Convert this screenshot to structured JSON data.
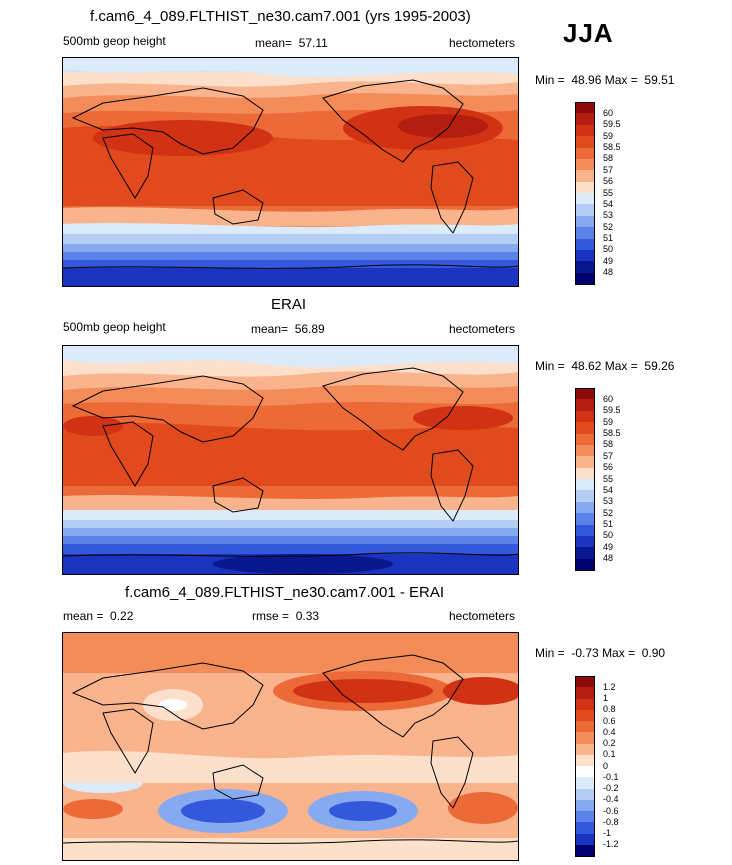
{
  "season": "JJA",
  "chart_data": [
    {
      "type": "heatmap",
      "title": "f.cam6_4_089.FLTHIST_ne30.cam7.001 (yrs 1995-2003)",
      "variable": "500mb geop height",
      "stat_label": "mean=",
      "stat_value": "57.11",
      "units": "hectometers",
      "min_label": "Min =",
      "min_value": "48.96",
      "max_label": "Max =",
      "max_value": "59.51",
      "colorbar": {
        "labels": [
          "60",
          "59.5",
          "59",
          "58.5",
          "58",
          "57",
          "56",
          "55",
          "54",
          "53",
          "52",
          "51",
          "50",
          "49",
          "48"
        ],
        "colors": [
          "#8c0a0a",
          "#b41e10",
          "#d23214",
          "#e04a1c",
          "#ec6a38",
          "#f48c5a",
          "#f9b48e",
          "#fde0cc",
          "#dcebfa",
          "#b4cdf5",
          "#86aaf0",
          "#5a82e8",
          "#3458dc",
          "#1a34c0",
          "#0a1890",
          "#000070"
        ]
      }
    },
    {
      "type": "heatmap",
      "title": "ERAI",
      "variable": "500mb geop height",
      "stat_label": "mean=",
      "stat_value": "56.89",
      "units": "hectometers",
      "min_label": "Min =",
      "min_value": "48.62",
      "max_label": "Max =",
      "max_value": "59.26",
      "colorbar": {
        "labels": [
          "60",
          "59.5",
          "59",
          "58.5",
          "58",
          "57",
          "56",
          "55",
          "54",
          "53",
          "52",
          "51",
          "50",
          "49",
          "48"
        ],
        "colors": [
          "#8c0a0a",
          "#b41e10",
          "#d23214",
          "#e04a1c",
          "#ec6a38",
          "#f48c5a",
          "#f9b48e",
          "#fde0cc",
          "#dcebfa",
          "#b4cdf5",
          "#86aaf0",
          "#5a82e8",
          "#3458dc",
          "#1a34c0",
          "#0a1890",
          "#000070"
        ]
      }
    },
    {
      "type": "heatmap",
      "title": "f.cam6_4_089.FLTHIST_ne30.cam7.001 - ERAI",
      "variable": "",
      "stat_label": "mean =",
      "stat_value": "0.22",
      "rmse_label": "rmse =",
      "rmse_value": "0.33",
      "units": "hectometers",
      "min_label": "Min =",
      "min_value": "-0.73",
      "max_label": "Max =",
      "max_value": "0.90",
      "colorbar": {
        "labels": [
          "1.2",
          "1",
          "0.8",
          "0.6",
          "0.4",
          "0.2",
          "0.1",
          "0",
          "-0.1",
          "-0.2",
          "-0.4",
          "-0.6",
          "-0.8",
          "-1",
          "-1.2"
        ],
        "colors": [
          "#8c0a0a",
          "#b41e10",
          "#d23214",
          "#e04a1c",
          "#ec6a38",
          "#f48c5a",
          "#f9b48e",
          "#fde0cc",
          "#ffffff",
          "#dcebfa",
          "#b4cdf5",
          "#86aaf0",
          "#5a82e8",
          "#3458dc",
          "#1a34c0",
          "#000070"
        ]
      }
    }
  ]
}
